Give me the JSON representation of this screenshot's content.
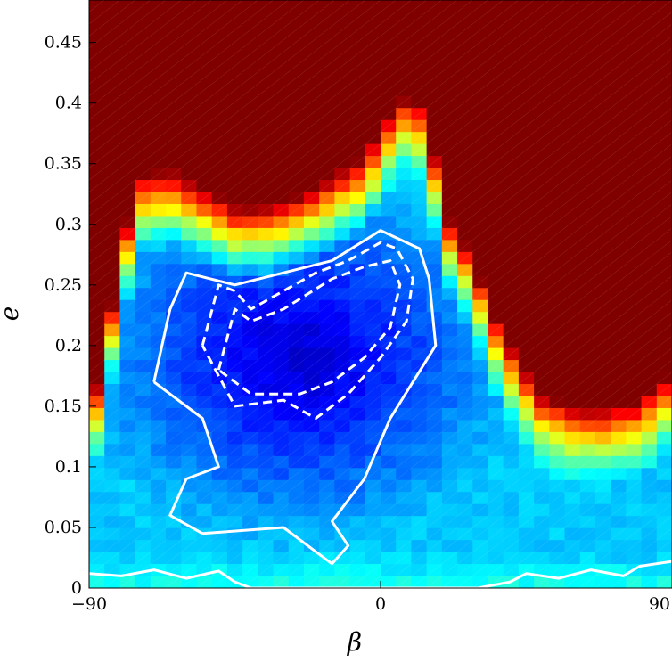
{
  "chart_data": {
    "type": "heatmap",
    "title": "",
    "xlabel": "β",
    "ylabel": "e",
    "xlim": [
      -90,
      90
    ],
    "ylim": [
      0,
      0.485
    ],
    "xticks": [
      {
        "value": -90,
        "label": "−90"
      },
      {
        "value": 0,
        "label": "0"
      },
      {
        "value": 90,
        "label": "90"
      }
    ],
    "yticks": [
      {
        "value": 0,
        "label": "0"
      },
      {
        "value": 0.05,
        "label": "0.05"
      },
      {
        "value": 0.1,
        "label": "0.1"
      },
      {
        "value": 0.15,
        "label": "0.15"
      },
      {
        "value": 0.2,
        "label": "0.2"
      },
      {
        "value": 0.25,
        "label": "0.25"
      },
      {
        "value": 0.3,
        "label": "0.3"
      },
      {
        "value": 0.35,
        "label": "0.35"
      },
      {
        "value": 0.4,
        "label": "0.4"
      },
      {
        "value": 0.45,
        "label": "0.45"
      }
    ],
    "colormap": [
      "#00008f",
      "#0000ff",
      "#0080ff",
      "#00ffff",
      "#80ff80",
      "#ffff00",
      "#ff8000",
      "#ff0000",
      "#800000"
    ],
    "grid_cells": [
      38,
      49
    ],
    "saturated_region_boundary": [
      [
        -90,
        0.14
      ],
      [
        -85,
        0.2
      ],
      [
        -80,
        0.28
      ],
      [
        -75,
        0.34
      ],
      [
        -65,
        0.345
      ],
      [
        -55,
        0.33
      ],
      [
        -45,
        0.315
      ],
      [
        -35,
        0.315
      ],
      [
        -25,
        0.325
      ],
      [
        -15,
        0.34
      ],
      [
        -5,
        0.355
      ],
      [
        0,
        0.38
      ],
      [
        5,
        0.4
      ],
      [
        10,
        0.41
      ],
      [
        15,
        0.38
      ],
      [
        20,
        0.31
      ],
      [
        25,
        0.29
      ],
      [
        30,
        0.26
      ],
      [
        35,
        0.225
      ],
      [
        40,
        0.2
      ],
      [
        45,
        0.18
      ],
      [
        50,
        0.16
      ],
      [
        60,
        0.15
      ],
      [
        70,
        0.15
      ],
      [
        80,
        0.155
      ],
      [
        90,
        0.18
      ]
    ],
    "minimum_location": [
      -25,
      0.19
    ],
    "contours": [
      {
        "style": "solid",
        "points": [
          [
            -70,
            0.17
          ],
          [
            -65,
            0.23
          ],
          [
            -60,
            0.26
          ],
          [
            -45,
            0.25
          ],
          [
            -30,
            0.26
          ],
          [
            -15,
            0.27
          ],
          [
            0,
            0.295
          ],
          [
            12,
            0.28
          ],
          [
            15,
            0.255
          ],
          [
            17,
            0.2
          ],
          [
            10,
            0.17
          ],
          [
            3,
            0.14
          ],
          [
            -5,
            0.09
          ],
          [
            -15,
            0.055
          ],
          [
            -10,
            0.035
          ],
          [
            -15,
            0.02
          ],
          [
            -30,
            0.05
          ],
          [
            -55,
            0.045
          ],
          [
            -65,
            0.06
          ],
          [
            -60,
            0.09
          ],
          [
            -50,
            0.1
          ],
          [
            -55,
            0.14
          ],
          [
            -70,
            0.17
          ]
        ]
      },
      {
        "style": "dashed",
        "points": [
          [
            -55,
            0.2
          ],
          [
            -50,
            0.25
          ],
          [
            -45,
            0.245
          ],
          [
            -40,
            0.23
          ],
          [
            -30,
            0.245
          ],
          [
            -20,
            0.26
          ],
          [
            -10,
            0.27
          ],
          [
            0,
            0.285
          ],
          [
            5,
            0.28
          ],
          [
            10,
            0.255
          ],
          [
            8,
            0.22
          ],
          [
            0,
            0.19
          ],
          [
            -10,
            0.16
          ],
          [
            -20,
            0.14
          ],
          [
            -30,
            0.155
          ],
          [
            -45,
            0.15
          ],
          [
            -55,
            0.2
          ]
        ]
      },
      {
        "style": "dashed",
        "points": [
          [
            -50,
            0.18
          ],
          [
            -45,
            0.23
          ],
          [
            -40,
            0.22
          ],
          [
            -30,
            0.23
          ],
          [
            -15,
            0.255
          ],
          [
            -5,
            0.265
          ],
          [
            3,
            0.27
          ],
          [
            6,
            0.25
          ],
          [
            3,
            0.215
          ],
          [
            -5,
            0.19
          ],
          [
            -15,
            0.17
          ],
          [
            -25,
            0.16
          ],
          [
            -40,
            0.16
          ],
          [
            -50,
            0.18
          ]
        ]
      },
      {
        "style": "solid",
        "points": [
          [
            -90,
            0.012
          ],
          [
            -80,
            0.01
          ],
          [
            -70,
            0.015
          ],
          [
            -60,
            0.008
          ],
          [
            -50,
            0.014
          ],
          [
            -45,
            0.005
          ],
          [
            -40,
            0.0
          ],
          [
            -30,
            0.0
          ],
          [
            0,
            0.0
          ],
          [
            30,
            0.0
          ],
          [
            40,
            0.005
          ],
          [
            45,
            0.012
          ],
          [
            55,
            0.008
          ],
          [
            65,
            0.015
          ],
          [
            75,
            0.01
          ],
          [
            80,
            0.018
          ],
          [
            85,
            0.02
          ],
          [
            90,
            0.022
          ]
        ]
      }
    ]
  }
}
